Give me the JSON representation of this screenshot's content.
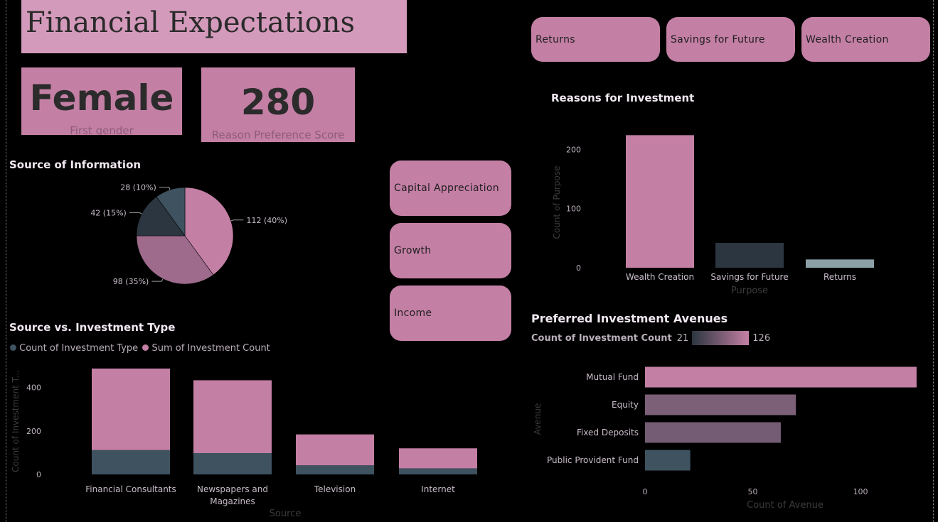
{
  "page": {
    "title": "Financial Expectations"
  },
  "cards": [
    {
      "value": "Female",
      "label": "First gender"
    },
    {
      "value": "280",
      "label": "Reason Preference Score"
    }
  ],
  "slicer_top": [
    "Returns",
    "Savings for Future",
    "Wealth Creation"
  ],
  "slicer_mid": [
    "Capital Appreciation",
    "Growth",
    "Income"
  ],
  "source_info": {
    "title": "Source of Information",
    "chart_data": {
      "type": "pie",
      "slices": [
        {
          "label": "112 (40%)",
          "value": 112,
          "color": "#c47fa5"
        },
        {
          "label": "98 (35%)",
          "value": 98,
          "color": "#9e6b8c"
        },
        {
          "label": "42 (15%)",
          "value": 42,
          "color": "#2b3640"
        },
        {
          "label": "28 (10%)",
          "value": 28,
          "color": "#3f5260"
        }
      ]
    }
  },
  "source_vs_type": {
    "title": "Source vs. Investment Type",
    "legend": [
      {
        "label": "Count of Investment Type",
        "color": "#3f5260"
      },
      {
        "label": "Sum of Investment Count",
        "color": "#c47fa5"
      }
    ],
    "chart_data": {
      "type": "bar",
      "stacked": true,
      "categories": [
        "Financial Consultants",
        "Newspapers and Magazines",
        "Television",
        "Internet"
      ],
      "series": [
        {
          "name": "Count of Investment Type",
          "values": [
            112,
            98,
            42,
            28
          ],
          "color": "#3f5260"
        },
        {
          "name": "Sum of Investment Count",
          "values": [
            375,
            335,
            142,
            92
          ],
          "color": "#c47fa5"
        }
      ],
      "ylim": [
        0,
        490
      ],
      "yticks": [
        0,
        200,
        400
      ],
      "xlabel": "Source",
      "ylabel": "Count of Investment T..."
    }
  },
  "reasons": {
    "title": "Reasons for Investment",
    "chart_data": {
      "type": "bar",
      "categories": [
        "Wealth Creation",
        "Savings for Future",
        "Returns"
      ],
      "values": [
        224,
        42,
        14
      ],
      "colors": [
        "#c47fa5",
        "#2b3640",
        "#8ca0a8"
      ],
      "ylim": [
        0,
        240
      ],
      "yticks": [
        0,
        100,
        200
      ],
      "xlabel": "Purpose",
      "ylabel": "Count of Purpose"
    }
  },
  "avenues": {
    "title": "Preferred Investment Avenues",
    "gradient_label": "Count of Investment Count",
    "gradient_min": "21",
    "gradient_max": "126",
    "chart_data": {
      "type": "bar",
      "orientation": "horizontal",
      "categories": [
        "Mutual Fund",
        "Equity",
        "Fixed Deposits",
        "Public Provident Fund"
      ],
      "values": [
        126,
        70,
        63,
        21
      ],
      "colors": [
        "#c47fa5",
        "#7c6078",
        "#735c74",
        "#3f5260"
      ],
      "xlim": [
        0,
        130
      ],
      "xticks": [
        0,
        50,
        100
      ],
      "xlabel": "Count of Avenue",
      "ylabel": "Avenue"
    }
  }
}
